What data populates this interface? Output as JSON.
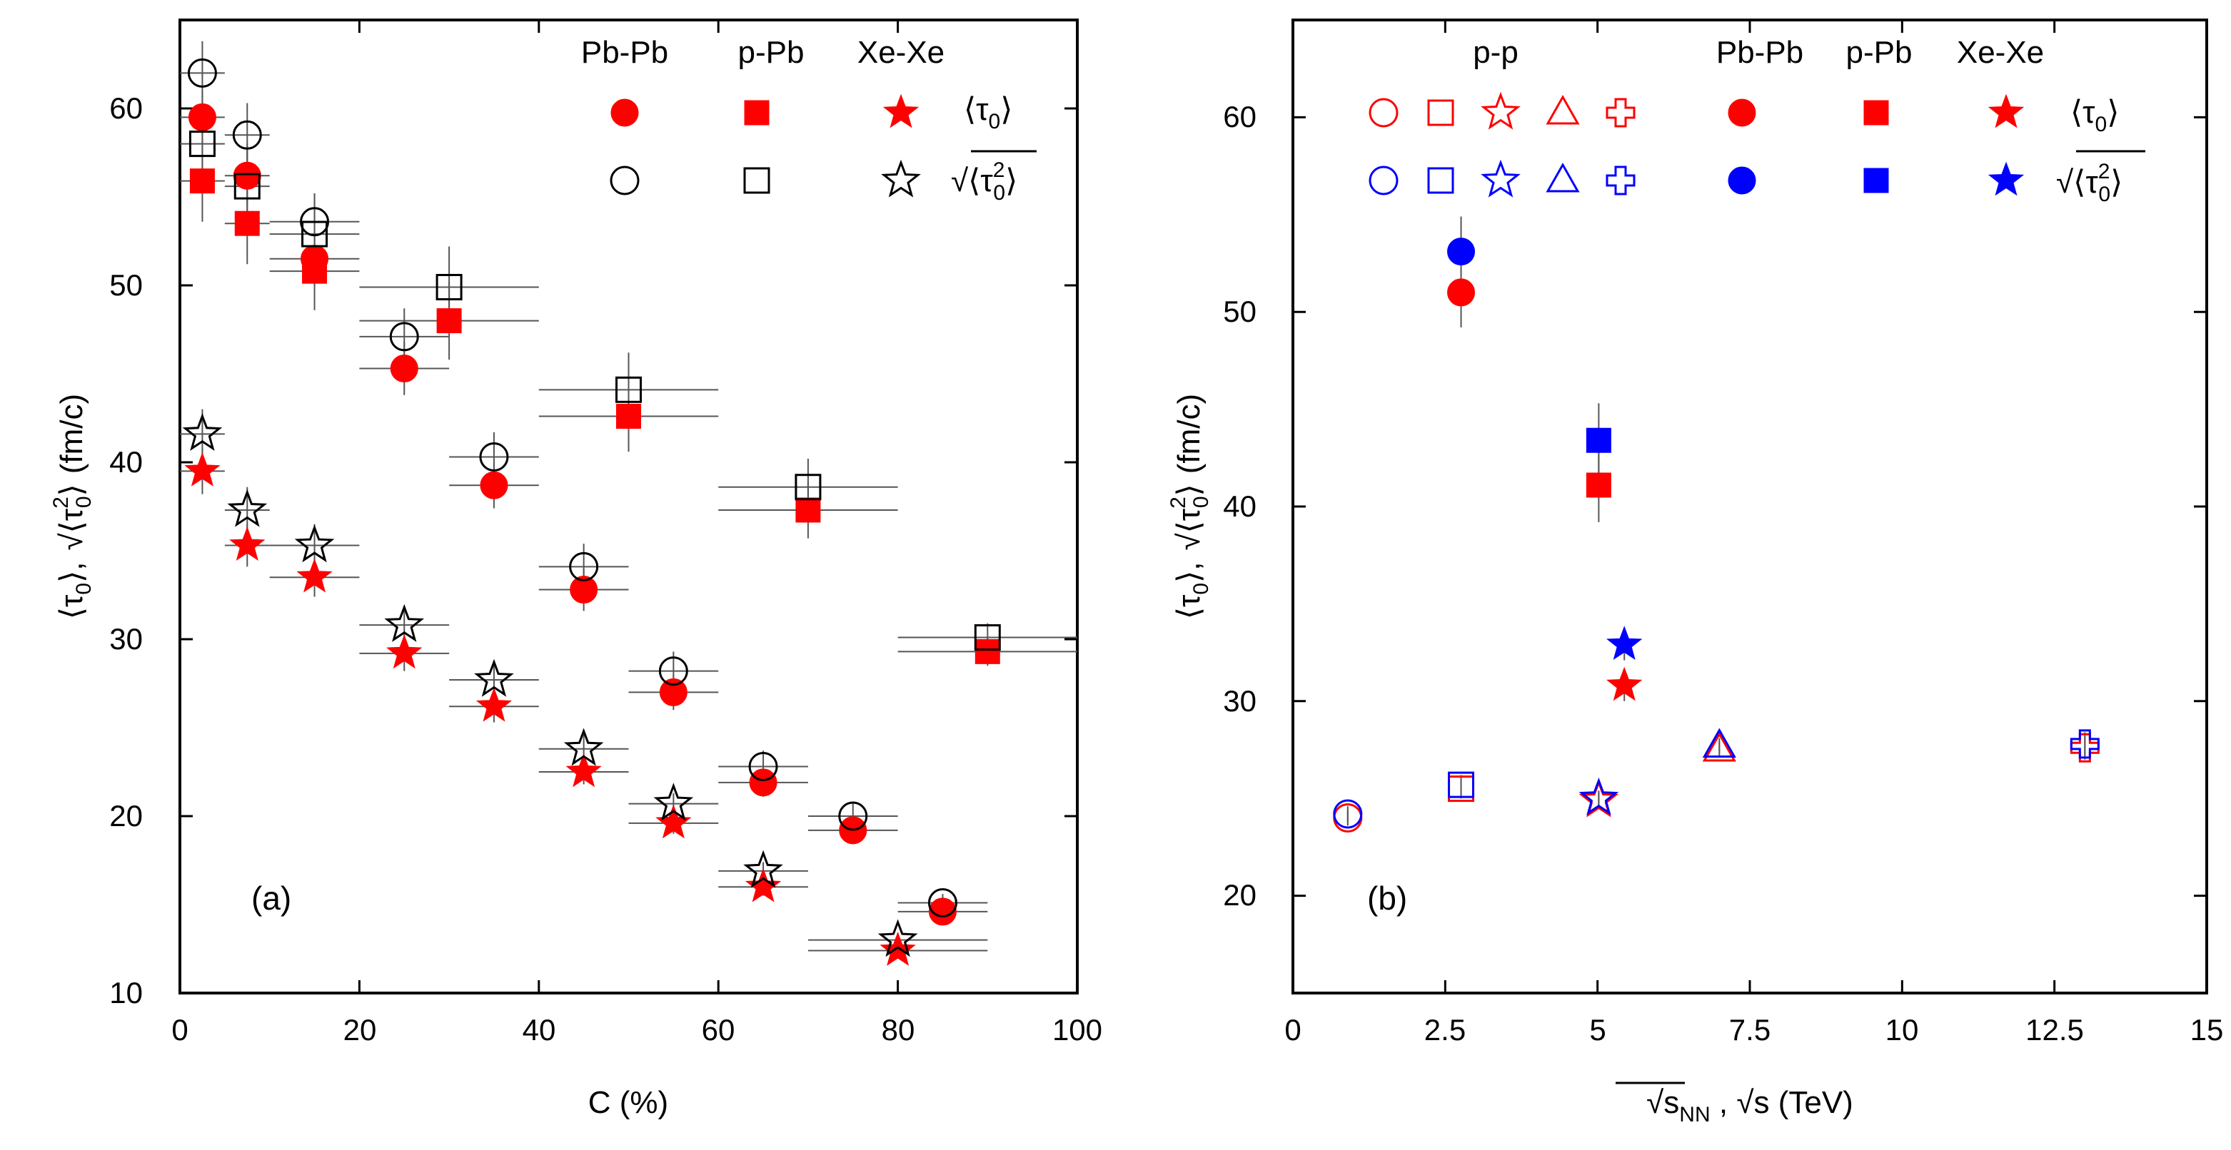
{
  "chart_data": [
    {
      "panel_label": "(a)",
      "type": "scatter",
      "xlabel": "C (%)",
      "ylabel": {
        "a": "⟨τ",
        "a_sub": "0",
        "a_close": "⟩,",
        "b_root": "√",
        "b_open": "⟨τ",
        "b_sup": "2",
        "b_sub": "0",
        "b_close": "⟩",
        "unit": "(fm/c)"
      },
      "xlim": [
        0,
        100
      ],
      "ylim": [
        10,
        65
      ],
      "xticks": [
        "0",
        "20",
        "40",
        "60",
        "80",
        "100"
      ],
      "yticks": [
        "10",
        "20",
        "30",
        "40",
        "50",
        "60"
      ],
      "legend": {
        "columns": [
          "Pb-Pb",
          "p-Pb",
          "Xe-Xe"
        ],
        "row_mean": {
          "open": "⟨τ",
          "sub": "0",
          "close": "⟩"
        },
        "row_rms": {
          "root": "√",
          "open": "⟨τ",
          "sup": "2",
          "sub": "0",
          "close": "⟩"
        }
      },
      "series": [
        {
          "name": "Pb-Pb ⟨τ0⟩",
          "system": "Pb-Pb",
          "stat": "mean",
          "marker": "circle",
          "filled": true,
          "color": "#ff0000",
          "x": [
            2.5,
            7.5,
            15,
            25,
            35,
            45,
            55,
            65,
            75,
            85
          ],
          "xerr": [
            2.5,
            2.5,
            5,
            5,
            5,
            5,
            5,
            5,
            5,
            5
          ],
          "y": [
            59.5,
            56.2,
            51.5,
            45.3,
            38.7,
            32.8,
            27.0,
            21.9,
            19.2,
            14.6
          ],
          "yerr": [
            1.5,
            1.5,
            1.5,
            1.5,
            1.3,
            1.2,
            1.0,
            0.8,
            0.6,
            0.5
          ]
        },
        {
          "name": "Pb-Pb sqrt⟨τ0²⟩",
          "system": "Pb-Pb",
          "stat": "rms",
          "marker": "circle",
          "filled": false,
          "color": "#000000",
          "x": [
            2.5,
            7.5,
            15,
            25,
            35,
            45,
            55,
            65,
            75,
            85
          ],
          "xerr": [
            2.5,
            2.5,
            5,
            5,
            5,
            5,
            5,
            5,
            5,
            5
          ],
          "y": [
            62.0,
            58.5,
            53.6,
            47.1,
            40.3,
            34.1,
            28.2,
            22.8,
            20.0,
            15.1
          ],
          "yerr": [
            1.8,
            1.8,
            1.6,
            1.6,
            1.4,
            1.3,
            1.1,
            0.9,
            0.7,
            0.5
          ]
        },
        {
          "name": "p-Pb ⟨τ0⟩",
          "system": "p-Pb",
          "stat": "mean",
          "marker": "square",
          "filled": true,
          "color": "#ff0000",
          "x": [
            2.5,
            7.5,
            15,
            30,
            50,
            70,
            90
          ],
          "xerr": [
            2.5,
            2.5,
            5,
            10,
            10,
            10,
            10
          ],
          "y": [
            55.9,
            53.5,
            50.8,
            48.0,
            42.6,
            37.3,
            29.3
          ],
          "yerr": [
            2.3,
            2.3,
            2.2,
            2.2,
            2.0,
            1.6,
            0.8
          ]
        },
        {
          "name": "p-Pb sqrt⟨τ0²⟩",
          "system": "p-Pb",
          "stat": "rms",
          "marker": "square",
          "filled": false,
          "color": "#000000",
          "x": [
            2.5,
            7.5,
            15,
            30,
            50,
            70,
            90
          ],
          "xerr": [
            2.5,
            2.5,
            5,
            10,
            10,
            10,
            10
          ],
          "y": [
            58.0,
            55.6,
            52.9,
            49.9,
            44.1,
            38.6,
            30.1
          ],
          "yerr": [
            2.4,
            2.4,
            2.3,
            2.3,
            2.1,
            1.6,
            0.8
          ]
        },
        {
          "name": "Xe-Xe ⟨τ0⟩",
          "system": "Xe-Xe",
          "stat": "mean",
          "marker": "star",
          "filled": true,
          "color": "#ff0000",
          "x": [
            2.5,
            7.5,
            15,
            25,
            35,
            45,
            55,
            65,
            80
          ],
          "xerr": [
            2.5,
            2.5,
            5,
            5,
            5,
            5,
            5,
            5,
            10
          ],
          "y": [
            39.5,
            35.3,
            33.5,
            29.2,
            26.2,
            22.5,
            19.6,
            16.0,
            12.4
          ],
          "yerr": [
            1.3,
            1.2,
            1.1,
            1.0,
            0.9,
            0.7,
            0.6,
            0.5,
            0.4
          ]
        },
        {
          "name": "Xe-Xe sqrt⟨τ0²⟩",
          "system": "Xe-Xe",
          "stat": "rms",
          "marker": "star",
          "filled": false,
          "color": "#000000",
          "x": [
            2.5,
            7.5,
            15,
            25,
            35,
            45,
            55,
            65,
            80
          ],
          "xerr": [
            2.5,
            2.5,
            5,
            5,
            5,
            5,
            5,
            5,
            10
          ],
          "y": [
            41.6,
            37.3,
            35.3,
            30.8,
            27.7,
            23.8,
            20.7,
            16.9,
            13.0
          ],
          "yerr": [
            1.4,
            1.3,
            1.2,
            1.1,
            1.0,
            0.8,
            0.6,
            0.5,
            0.4
          ]
        }
      ]
    },
    {
      "panel_label": "(b)",
      "type": "scatter",
      "xlabel": {
        "root1": "√",
        "s1": "s",
        "sub1": "NN",
        "sep": " , ",
        "root2": "√",
        "s2": "s",
        "unit": " (TeV)"
      },
      "ylabel": {
        "a": "⟨τ",
        "a_sub": "0",
        "a_close": "⟩,",
        "b_root": "√",
        "b_open": "⟨τ",
        "b_sup": "2",
        "b_sub": "0",
        "b_close": "⟩",
        "unit": "(fm/c)"
      },
      "xlim": [
        0,
        15
      ],
      "ylim": [
        15,
        65
      ],
      "xticks": [
        "0",
        "2.5",
        "5",
        "7.5",
        "10",
        "12.5",
        "15"
      ],
      "yticks": [
        "20",
        "30",
        "40",
        "50",
        "60"
      ],
      "legend": {
        "columns": [
          "p-p",
          "Pb-Pb",
          "p-Pb",
          "Xe-Xe"
        ],
        "row_mean": {
          "open": "⟨τ",
          "sub": "0",
          "close": "⟩"
        },
        "row_rms": {
          "root": "√",
          "open": "⟨τ",
          "sup": "2",
          "sub": "0",
          "close": "⟩"
        }
      },
      "series": [
        {
          "name": "p-p ⟨τ0⟩ 0.9 TeV",
          "marker": "circle",
          "filled": false,
          "color": "#ff0000",
          "x": [
            0.9
          ],
          "y": [
            24.0
          ],
          "yerr": [
            0.4
          ]
        },
        {
          "name": "p-p sqrt⟨τ0²⟩ 0.9 TeV",
          "marker": "circle",
          "filled": false,
          "color": "#0000ff",
          "x": [
            0.9
          ],
          "y": [
            24.2
          ],
          "yerr": [
            0.4
          ]
        },
        {
          "name": "p-p ⟨τ0⟩ 2.76 TeV",
          "marker": "square",
          "filled": false,
          "color": "#ff0000",
          "x": [
            2.76
          ],
          "y": [
            25.5
          ],
          "yerr": [
            0.5
          ]
        },
        {
          "name": "p-p sqrt⟨τ0²⟩ 2.76 TeV",
          "marker": "square",
          "filled": false,
          "color": "#0000ff",
          "x": [
            2.76
          ],
          "y": [
            25.7
          ],
          "yerr": [
            0.5
          ]
        },
        {
          "name": "p-p ⟨τ0⟩ 5.02 TeV",
          "marker": "star",
          "filled": false,
          "color": "#ff0000",
          "x": [
            5.02
          ],
          "y": [
            24.9
          ],
          "yerr": [
            0.4
          ]
        },
        {
          "name": "p-p sqrt⟨τ0²⟩ 5.02 TeV",
          "marker": "star",
          "filled": false,
          "color": "#0000ff",
          "x": [
            5.02
          ],
          "y": [
            25.0
          ],
          "yerr": [
            0.4
          ]
        },
        {
          "name": "p-p ⟨τ0⟩ 7 TeV",
          "marker": "triangle",
          "filled": false,
          "color": "#ff0000",
          "x": [
            7.0
          ],
          "y": [
            27.5
          ],
          "yerr": [
            0.4
          ]
        },
        {
          "name": "p-p sqrt⟨τ0²⟩ 7 TeV",
          "marker": "triangle",
          "filled": false,
          "color": "#0000ff",
          "x": [
            7.0
          ],
          "y": [
            27.7
          ],
          "yerr": [
            0.4
          ]
        },
        {
          "name": "p-p ⟨τ0⟩ 13 TeV",
          "marker": "cross",
          "filled": false,
          "color": "#ff0000",
          "x": [
            13.0
          ],
          "y": [
            27.6
          ],
          "yerr": [
            0.6
          ]
        },
        {
          "name": "p-p sqrt⟨τ0²⟩ 13 TeV",
          "marker": "cross",
          "filled": false,
          "color": "#0000ff",
          "x": [
            13.0
          ],
          "y": [
            27.8
          ],
          "yerr": [
            0.6
          ]
        },
        {
          "name": "Pb-Pb ⟨τ0⟩",
          "marker": "circle",
          "filled": true,
          "color": "#ff0000",
          "x": [
            2.76
          ],
          "y": [
            51.0
          ],
          "yerr": [
            1.8
          ]
        },
        {
          "name": "Pb-Pb sqrt⟨τ0²⟩",
          "marker": "circle",
          "filled": true,
          "color": "#0000ff",
          "x": [
            2.76
          ],
          "y": [
            53.1
          ],
          "yerr": [
            1.8
          ]
        },
        {
          "name": "p-Pb ⟨τ0⟩",
          "marker": "square",
          "filled": true,
          "color": "#ff0000",
          "x": [
            5.02
          ],
          "y": [
            41.1
          ],
          "yerr": [
            1.9
          ]
        },
        {
          "name": "p-Pb sqrt⟨τ0²⟩",
          "marker": "square",
          "filled": true,
          "color": "#0000ff",
          "x": [
            5.02
          ],
          "y": [
            43.4
          ],
          "yerr": [
            1.9
          ]
        },
        {
          "name": "Xe-Xe ⟨τ0⟩",
          "marker": "star",
          "filled": true,
          "color": "#ff0000",
          "x": [
            5.44
          ],
          "y": [
            30.8
          ],
          "yerr": [
            0.8
          ]
        },
        {
          "name": "Xe-Xe sqrt⟨τ0²⟩",
          "marker": "star",
          "filled": true,
          "color": "#0000ff",
          "x": [
            5.44
          ],
          "y": [
            32.9
          ],
          "yerr": [
            0.8
          ]
        }
      ]
    }
  ],
  "colors": {
    "red": "#ff0000",
    "blue": "#0000ff",
    "black": "#000000",
    "axis": "#000000",
    "errorbar": "#555555"
  }
}
